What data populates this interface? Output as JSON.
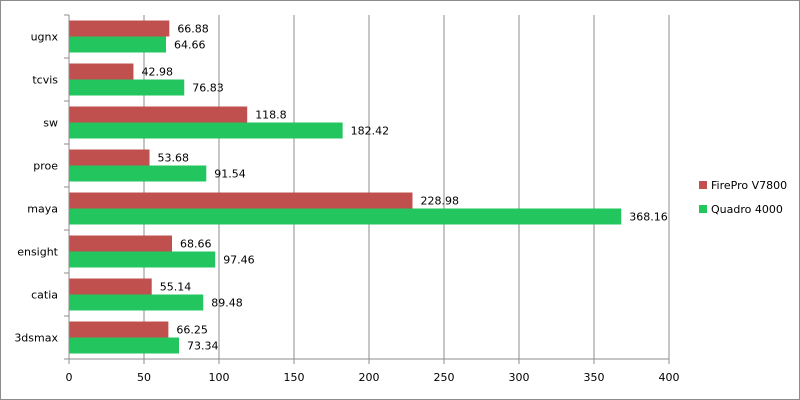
{
  "chart_data": {
    "type": "bar",
    "orientation": "horizontal",
    "title": "",
    "xlabel": "",
    "ylabel": "",
    "categories": [
      "ugnx",
      "tcvis",
      "sw",
      "proe",
      "maya",
      "ensight",
      "catia",
      "3dsmax"
    ],
    "series": [
      {
        "name": "FirePro V7800",
        "color": "#c0504d",
        "values": [
          66.88,
          42.98,
          118.8,
          53.68,
          228.98,
          68.66,
          55.14,
          66.25
        ],
        "labels": [
          "66.88",
          "42.98",
          "118.8",
          "53.68",
          "228.98",
          "68.66",
          "55.14",
          "66.25"
        ]
      },
      {
        "name": "Quadro 4000",
        "color": "#22c55e",
        "values": [
          64.66,
          76.83,
          182.42,
          91.54,
          368.16,
          97.46,
          89.48,
          73.34
        ],
        "labels": [
          "64.66",
          "76.83",
          "182.42",
          "91.54",
          "368.16",
          "97.46",
          "89.48",
          "73.34"
        ]
      }
    ],
    "xlim": [
      0,
      400
    ],
    "xticks": [
      "0",
      "50",
      "100",
      "150",
      "200",
      "250",
      "300",
      "350",
      "400"
    ],
    "grid": true,
    "legend_position": "right"
  }
}
